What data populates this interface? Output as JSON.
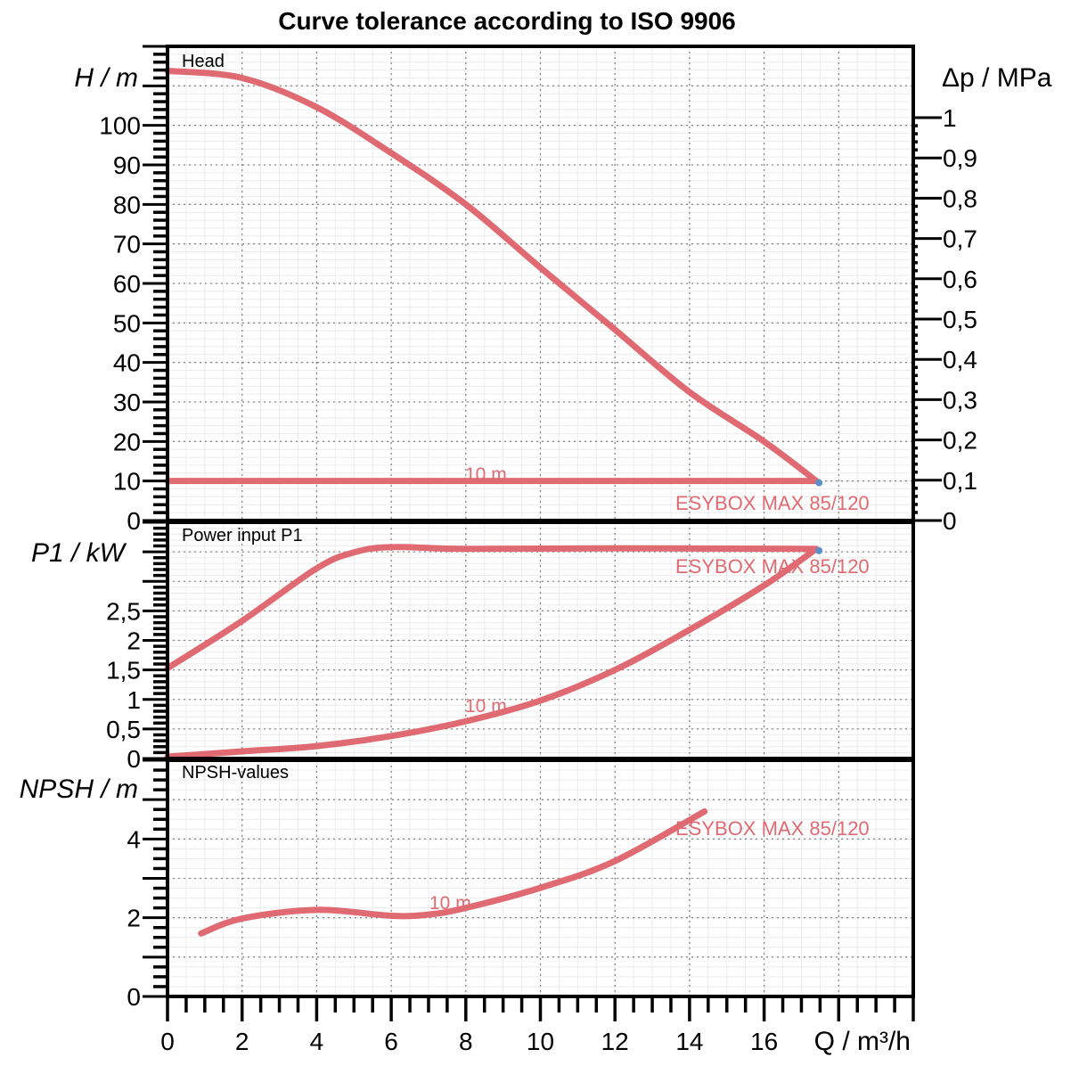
{
  "chart_data": [
    {
      "type": "line",
      "title": "Curve tolerance according to ISO 9906",
      "panel_label": "Head",
      "xlabel": "Q / m³/h",
      "ylabel": "H / m",
      "ylabel_right": "Δp / MPa",
      "xlim": [
        0,
        20
      ],
      "ylim": [
        0,
        120
      ],
      "ylim_right": [
        0,
        1.177
      ],
      "xticks": [
        "0",
        "2",
        "4",
        "6",
        "8",
        "10",
        "12",
        "14",
        "16"
      ],
      "yticks": [
        "0",
        "10",
        "20",
        "30",
        "40",
        "50",
        "60",
        "70",
        "80",
        "90",
        "100"
      ],
      "yticks_right": [
        "0",
        "0,1",
        "0,2",
        "0,3",
        "0,4",
        "0,5",
        "0,6",
        "0,7",
        "0,8",
        "0,9",
        "1"
      ],
      "grid": true,
      "series": [
        {
          "name": "ESYBOX MAX 85/120",
          "color": "#e06a72",
          "x": [
            0,
            2,
            4,
            6,
            8,
            10,
            12,
            14,
            16,
            17.4
          ],
          "y": [
            113.8,
            112,
            104.6,
            93,
            80,
            64,
            48.3,
            32.5,
            20,
            10
          ]
        },
        {
          "name": "10 m",
          "color": "#e06a72",
          "x": [
            0,
            17.4
          ],
          "y": [
            10,
            10
          ]
        }
      ],
      "annotations": [
        "10 m",
        "ESYBOX MAX 85/120"
      ],
      "operating_point": {
        "x": 17.4,
        "y": 10,
        "color": "#5b8fc9"
      }
    },
    {
      "type": "line",
      "panel_label": "Power input P1",
      "ylabel": "P1 / kW",
      "xlim": [
        0,
        20
      ],
      "ylim": [
        0,
        4
      ],
      "yticks": [
        "0",
        "0,5",
        "1",
        "1,5",
        "2",
        "2,5"
      ],
      "grid": true,
      "series": [
        {
          "name": "ESYBOX MAX 85/120",
          "color": "#e06a72",
          "x": [
            0,
            2,
            4,
            5,
            6,
            8,
            12,
            17.4
          ],
          "y": [
            1.53,
            2.33,
            3.22,
            3.49,
            3.58,
            3.55,
            3.56,
            3.55
          ]
        },
        {
          "name": "10 m",
          "color": "#e06a72",
          "x": [
            0,
            2,
            4,
            6,
            8,
            10,
            12,
            14,
            16,
            17.4
          ],
          "y": [
            0.03,
            0.12,
            0.21,
            0.38,
            0.63,
            0.98,
            1.5,
            2.18,
            2.93,
            3.55
          ]
        }
      ],
      "annotations": [
        "10 m",
        "ESYBOX MAX 85/120"
      ],
      "operating_point": {
        "x": 17.4,
        "y": 3.55,
        "color": "#5b8fc9"
      }
    },
    {
      "type": "line",
      "panel_label": "NPSH-values",
      "ylabel": "NPSH / m",
      "xlim": [
        0,
        20
      ],
      "ylim": [
        0,
        6
      ],
      "yticks": [
        "0",
        "2",
        "4"
      ],
      "grid": true,
      "series": [
        {
          "name": "ESYBOX MAX 85/120",
          "color": "#e06a72",
          "x": [
            0.9,
            2,
            4,
            6,
            7,
            8,
            10,
            12,
            14.4
          ],
          "y": [
            1.6,
            1.98,
            2.2,
            2.05,
            2.08,
            2.25,
            2.76,
            3.44,
            4.7
          ]
        }
      ],
      "annotations": [
        "10 m",
        "ESYBOX MAX 85/120"
      ]
    }
  ],
  "colors": {
    "curve": "#e06a72",
    "point": "#5b8fc9",
    "axis": "#000000",
    "grid": "#888888",
    "minor_grid": "#ececec"
  }
}
